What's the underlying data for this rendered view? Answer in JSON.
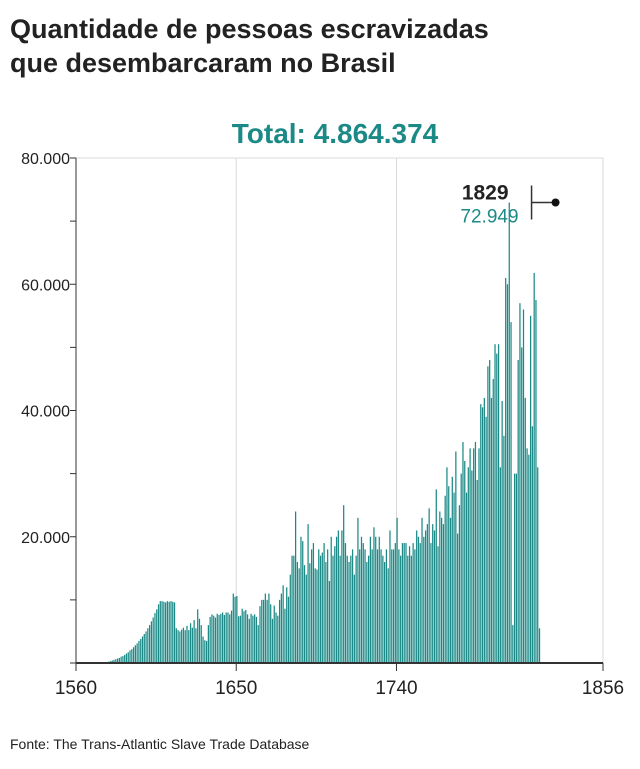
{
  "title_lines": [
    "Quantidade de pessoas escravizadas",
    "que desembarcaram no Brasil"
  ],
  "total_label": "Total: 4.864.374",
  "source": "Fonte: The Trans-Atlantic Slave Trade Database",
  "colors": {
    "bars": "#1b8a87",
    "text": "#222222",
    "axis": "#333333",
    "grid": "#d9d9d9"
  },
  "chart_data": {
    "type": "bar",
    "x_label": "",
    "y_label": "",
    "xlim": [
      1560,
      1856
    ],
    "ylim": [
      0,
      80000
    ],
    "x_ticks": [
      "1560",
      "1650",
      "1740",
      "1856"
    ],
    "y_ticks": [
      "20.000",
      "40.000",
      "60.000",
      "80.000"
    ],
    "grid": "vertical",
    "annotation": {
      "year": "1829",
      "value_label": "72.949",
      "value": 72949
    },
    "series": [
      {
        "x_start": 1560,
        "x_step": 1,
        "values": [
          0,
          0,
          0,
          0,
          0,
          0,
          0,
          0,
          0,
          0,
          0,
          0,
          0,
          0,
          0,
          0,
          0,
          100,
          200,
          300,
          400,
          500,
          600,
          700,
          800,
          1000,
          1100,
          1300,
          1500,
          1700,
          2000,
          2200,
          2500,
          2800,
          3100,
          3500,
          3800,
          4200,
          4600,
          5000,
          5500,
          6000,
          6600,
          7200,
          7900,
          8500,
          9300,
          9800,
          9800,
          9700,
          9600,
          9800,
          9700,
          9800,
          9700,
          9600,
          5500,
          5200,
          5000,
          5300,
          5600,
          5200,
          5900,
          5200,
          6300,
          5600,
          6800,
          5500,
          8500,
          7000,
          6000,
          4200,
          3600,
          3500,
          6000,
          7300,
          7700,
          7500,
          7200,
          7800,
          7600,
          7800,
          8000,
          7600,
          8000,
          8000,
          7700,
          8300,
          11000,
          10500,
          10600,
          7400,
          7500,
          8600,
          8200,
          8400,
          7700,
          7000,
          7800,
          7500,
          7700,
          7300,
          6000,
          9000,
          10000,
          10000,
          11000,
          10000,
          11000,
          9300,
          7000,
          9100,
          8000,
          7500,
          10000,
          11000,
          12300,
          8600,
          12000,
          10500,
          14000,
          17000,
          17000,
          24000,
          16000,
          15000,
          20000,
          19300,
          15500,
          14000,
          22000,
          15800,
          18000,
          19000,
          15000,
          14800,
          18000,
          17000,
          17500,
          19000,
          16000,
          18000,
          13000,
          20000,
          17000,
          18500,
          20000,
          21000,
          17000,
          21000,
          25000,
          19000,
          17000,
          16000,
          17000,
          18000,
          14000,
          17000,
          23000,
          18000,
          20000,
          19000,
          18000,
          16000,
          17000,
          20000,
          18000,
          21500,
          20000,
          18000,
          20000,
          18000,
          17000,
          16000,
          18000,
          15000,
          21000,
          18000,
          18000,
          19000,
          23000,
          18000,
          17000,
          19000,
          19000,
          19000,
          17000,
          18500,
          17000,
          19000,
          18000,
          21000,
          20000,
          19000,
          23000,
          20000,
          21000,
          22000,
          24500,
          19000,
          22000,
          21000,
          27500,
          18500,
          24000,
          23000,
          22000,
          26500,
          31000,
          28000,
          23000,
          29500,
          27000,
          33500,
          20500,
          25000,
          30000,
          35000,
          32000,
          27000,
          31000,
          34000,
          30500,
          34000,
          35000,
          29000,
          34000,
          41000,
          40500,
          42000,
          39000,
          47000,
          48000,
          42000,
          45000,
          50500,
          49000,
          50500,
          31000,
          41500,
          36000,
          61000,
          60000,
          72949,
          54000,
          6000,
          30000,
          30000,
          48000,
          57000,
          50000,
          56000,
          42000,
          34000,
          33000,
          55000,
          37500,
          61800,
          57500,
          31000,
          5500,
          0
        ]
      }
    ]
  }
}
